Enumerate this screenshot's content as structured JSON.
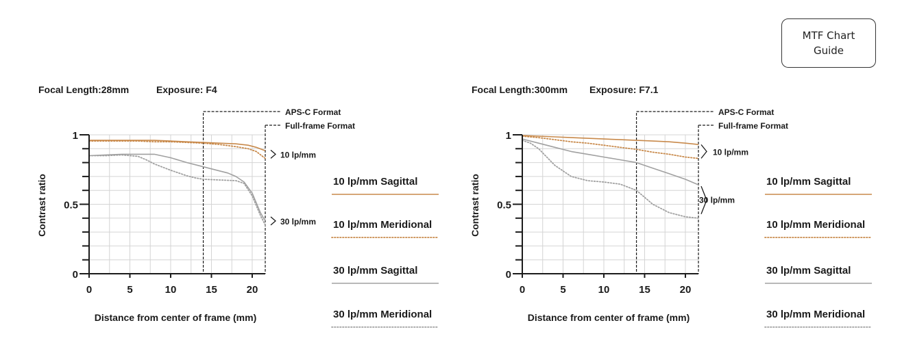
{
  "guide_button": {
    "line1": "MTF Chart",
    "line2": "Guide"
  },
  "chart_data": [
    {
      "type": "line",
      "title": "Focal Length:28mm    Exposure: F4",
      "focal_length": "Focal Length:28mm",
      "exposure": "Exposure: F4",
      "xlabel": "Distance from center of frame (mm)",
      "ylabel": "Contrast ratio",
      "xlim": [
        0,
        21.6
      ],
      "ylim": [
        0,
        1
      ],
      "xticks": [
        "0",
        "5",
        "10",
        "15",
        "20"
      ],
      "yticks": [
        "0",
        "0.5",
        "1"
      ],
      "grid": true,
      "format_markers": [
        {
          "label": "APS-C Format",
          "x": 14.0
        },
        {
          "label": "Full-frame Format",
          "x": 21.6
        }
      ],
      "group_labels": [
        "10 lp/mm",
        "30 lp/mm"
      ],
      "series": [
        {
          "name": "10 lp/mm Sagittal",
          "color": "#c8894a",
          "style": "solid",
          "x": [
            0,
            2,
            4,
            6,
            8,
            10,
            12,
            14,
            16,
            18,
            19.5,
            20.5,
            21.6
          ],
          "y": [
            0.96,
            0.96,
            0.96,
            0.96,
            0.96,
            0.955,
            0.95,
            0.945,
            0.94,
            0.935,
            0.925,
            0.91,
            0.885
          ]
        },
        {
          "name": "10 lp/mm Meridional",
          "color": "#c8894a",
          "style": "dotted",
          "x": [
            0,
            2,
            4,
            6,
            8,
            10,
            12,
            14,
            16,
            18,
            19.5,
            20.5,
            21.6
          ],
          "y": [
            0.955,
            0.955,
            0.955,
            0.955,
            0.95,
            0.95,
            0.945,
            0.94,
            0.93,
            0.915,
            0.9,
            0.88,
            0.83
          ]
        },
        {
          "name": "30 lp/mm Sagittal",
          "color": "#a0a0a0",
          "style": "solid",
          "x": [
            0,
            2,
            4,
            6,
            8,
            10,
            12,
            14,
            16,
            17,
            18,
            19,
            20,
            21,
            21.6
          ],
          "y": [
            0.85,
            0.855,
            0.86,
            0.86,
            0.86,
            0.835,
            0.8,
            0.77,
            0.74,
            0.725,
            0.7,
            0.66,
            0.58,
            0.44,
            0.38
          ]
        },
        {
          "name": "30 lp/mm Meridional",
          "color": "#a0a0a0",
          "style": "dotted",
          "x": [
            0,
            2,
            4,
            6,
            7,
            8,
            10,
            12,
            13,
            14,
            16,
            18,
            19,
            20,
            21,
            21.6
          ],
          "y": [
            0.85,
            0.85,
            0.855,
            0.845,
            0.82,
            0.79,
            0.745,
            0.705,
            0.69,
            0.68,
            0.675,
            0.67,
            0.65,
            0.56,
            0.42,
            0.35
          ]
        }
      ]
    },
    {
      "type": "line",
      "title": "Focal Length:300mm    Exposure: F7.1",
      "focal_length": "Focal Length:300mm",
      "exposure": "Exposure: F7.1",
      "xlabel": "Distance from center of frame (mm)",
      "ylabel": "Contrast ratio",
      "xlim": [
        0,
        21.6
      ],
      "ylim": [
        0,
        1
      ],
      "xticks": [
        "0",
        "5",
        "10",
        "15",
        "20"
      ],
      "yticks": [
        "0",
        "0.5",
        "1"
      ],
      "grid": true,
      "format_markers": [
        {
          "label": "APS-C Format",
          "x": 14.0
        },
        {
          "label": "Full-frame Format",
          "x": 21.6
        }
      ],
      "group_labels": [
        "10 lp/mm",
        "30 lp/mm"
      ],
      "series": [
        {
          "name": "10 lp/mm Sagittal",
          "color": "#c8894a",
          "style": "solid",
          "x": [
            0,
            2,
            4,
            6,
            8,
            10,
            12,
            14,
            16,
            18,
            20,
            21.6
          ],
          "y": [
            0.995,
            0.99,
            0.985,
            0.98,
            0.975,
            0.97,
            0.965,
            0.96,
            0.955,
            0.95,
            0.94,
            0.93
          ]
        },
        {
          "name": "10 lp/mm Meridional",
          "color": "#c8894a",
          "style": "dotted",
          "x": [
            0,
            2,
            4,
            6,
            8,
            10,
            12,
            14,
            16,
            18,
            20,
            21.6
          ],
          "y": [
            0.99,
            0.98,
            0.965,
            0.95,
            0.94,
            0.925,
            0.91,
            0.895,
            0.875,
            0.86,
            0.84,
            0.83
          ]
        },
        {
          "name": "30 lp/mm Sagittal",
          "color": "#a0a0a0",
          "style": "solid",
          "x": [
            0,
            2,
            4,
            6,
            8,
            10,
            12,
            14,
            16,
            18,
            20,
            21.6
          ],
          "y": [
            0.97,
            0.94,
            0.91,
            0.88,
            0.86,
            0.84,
            0.82,
            0.8,
            0.76,
            0.72,
            0.68,
            0.64
          ]
        },
        {
          "name": "30 lp/mm Meridional",
          "color": "#a0a0a0",
          "style": "dotted",
          "x": [
            0,
            1,
            2,
            3,
            4,
            5,
            6,
            8,
            10,
            12,
            14,
            16,
            18,
            20,
            21.6
          ],
          "y": [
            0.96,
            0.94,
            0.9,
            0.84,
            0.78,
            0.74,
            0.7,
            0.67,
            0.66,
            0.645,
            0.6,
            0.5,
            0.44,
            0.41,
            0.4
          ]
        }
      ]
    }
  ]
}
